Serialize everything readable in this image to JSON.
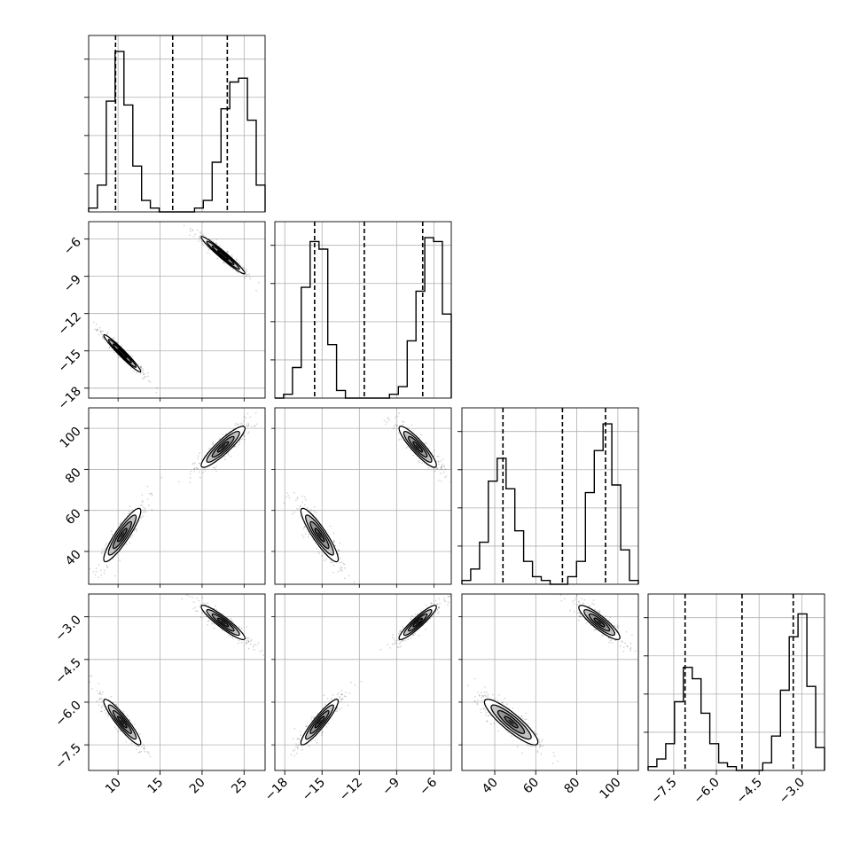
{
  "chart_data": {
    "type": "scatter",
    "kind": "corner-plot",
    "title": "",
    "grid": true,
    "legend": "none",
    "colors": {
      "line": "#000000",
      "density": "#000000",
      "grid": "#b0b0b0"
    },
    "parameters": [
      {
        "range": [
          6.5,
          27.5
        ],
        "ticks": [
          10,
          15,
          20,
          25
        ],
        "tick_labels": [
          "10",
          "15",
          "20",
          "25"
        ],
        "quantiles": [
          9.7,
          16.5,
          23.0
        ],
        "modes": [
          {
            "mean": 10.5,
            "sd": 1.1,
            "weight": 0.5
          },
          {
            "mean": 22.5,
            "sd": 1.3,
            "weight": 0.5
          }
        ]
      },
      {
        "range": [
          -18.8,
          -4.6
        ],
        "ticks": [
          -18,
          -15,
          -12,
          -9,
          -6
        ],
        "tick_labels": [
          "−18",
          "−15",
          "−12",
          "−9",
          "−6"
        ],
        "quantiles": [
          -15.6,
          -11.6,
          -6.9
        ],
        "modes": [
          {
            "mean": -15.2,
            "sd": 0.75,
            "weight": 0.5
          },
          {
            "mean": -7.3,
            "sd": 0.75,
            "weight": 0.5
          }
        ]
      },
      {
        "range": [
          24,
          110
        ],
        "ticks": [
          40,
          60,
          80,
          100
        ],
        "tick_labels": [
          "40",
          "60",
          "80",
          "100"
        ],
        "quantiles": [
          44,
          73,
          94
        ],
        "modes": [
          {
            "mean": 48,
            "sd": 6.5,
            "weight": 0.5
          },
          {
            "mean": 91,
            "sd": 5,
            "weight": 0.5
          }
        ]
      },
      {
        "range": [
          -8.4,
          -2.2
        ],
        "ticks": [
          -7.5,
          -6.0,
          -4.5,
          -3.0
        ],
        "tick_labels": [
          "−7.5",
          "−6.0",
          "−4.5",
          "−3.0"
        ],
        "quantiles": [
          -7.1,
          -5.1,
          -3.3
        ],
        "modes": [
          {
            "mean": -6.7,
            "sd": 0.4,
            "weight": 0.5
          },
          {
            "mean": -3.2,
            "sd": 0.3,
            "weight": 0.5
          }
        ]
      }
    ],
    "histograms": [
      {
        "param": 0,
        "bins": 20,
        "peak": 0.42,
        "counts": [
          0.01,
          0.07,
          0.29,
          0.42,
          0.28,
          0.12,
          0.03,
          0.01,
          0.0,
          0.0,
          0.0,
          0.0,
          0.01,
          0.03,
          0.13,
          0.27,
          0.34,
          0.35,
          0.24,
          0.07
        ]
      },
      {
        "param": 1,
        "bins": 20,
        "peak": 0.42,
        "counts": [
          0.0,
          0.01,
          0.08,
          0.29,
          0.41,
          0.39,
          0.14,
          0.02,
          0.0,
          0.0,
          0.0,
          0.0,
          0.0,
          0.01,
          0.03,
          0.15,
          0.28,
          0.42,
          0.41,
          0.22
        ]
      },
      {
        "param": 2,
        "bins": 20,
        "peak": 0.42,
        "counts": [
          0.01,
          0.04,
          0.11,
          0.27,
          0.33,
          0.25,
          0.14,
          0.06,
          0.02,
          0.01,
          0.0,
          0.0,
          0.02,
          0.06,
          0.24,
          0.35,
          0.42,
          0.26,
          0.09,
          0.01
        ]
      },
      {
        "param": 3,
        "bins": 20,
        "peak": 0.42,
        "counts": [
          0.01,
          0.03,
          0.07,
          0.18,
          0.27,
          0.24,
          0.15,
          0.07,
          0.02,
          0.01,
          0.0,
          0.0,
          0.0,
          0.02,
          0.09,
          0.21,
          0.35,
          0.41,
          0.22,
          0.06
        ]
      }
    ],
    "pairs": [
      {
        "x": 0,
        "y": 1,
        "rho": -0.97
      },
      {
        "x": 0,
        "y": 2,
        "rho": 0.9
      },
      {
        "x": 1,
        "y": 2,
        "rho": -0.9
      },
      {
        "x": 0,
        "y": 3,
        "rho": -0.92
      },
      {
        "x": 1,
        "y": 3,
        "rho": 0.92
      },
      {
        "x": 2,
        "y": 3,
        "rho": -0.88
      }
    ]
  }
}
